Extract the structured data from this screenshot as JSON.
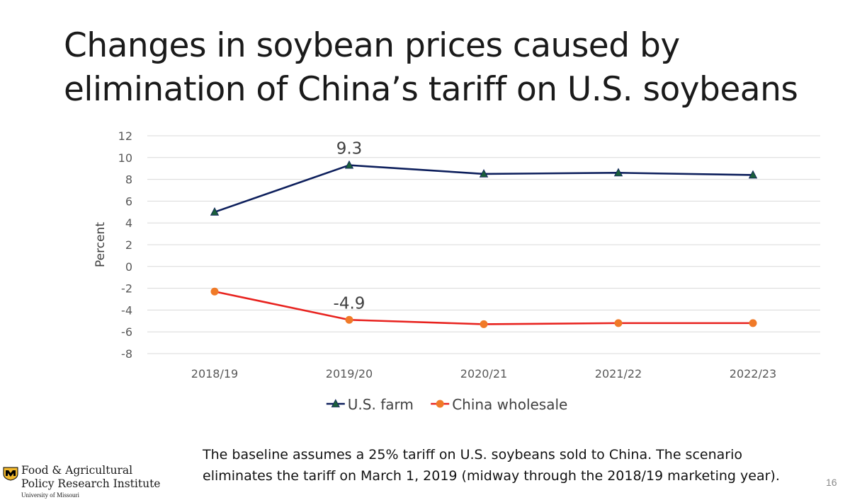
{
  "slide": {
    "title_lines": [
      "Changes in soybean prices caused by",
      "elimination of China’s tariff on U.S. soybeans"
    ],
    "footnote_lines": [
      "The baseline assumes a 25% tariff on U.S. soybeans sold to China. The scenario",
      "eliminates the tariff on March 1, 2019 (midway through the 2018/19 marketing year)."
    ],
    "page_number": "16",
    "logo": {
      "icon": "university-of-missouri-tiger-icon",
      "line1": "Food & Agricultural",
      "line2": "Policy Research Institute",
      "line3": "University of Missouri"
    }
  },
  "chart_data": {
    "type": "line",
    "title": "",
    "xlabel": "",
    "ylabel": "Percent",
    "categories": [
      "2018/19",
      "2019/20",
      "2020/21",
      "2021/22",
      "2022/23"
    ],
    "ylim": [
      -8,
      12
    ],
    "yticks": [
      12,
      10,
      8,
      6,
      4,
      2,
      0,
      -2,
      -4,
      -6,
      -8
    ],
    "grid": true,
    "legend_position": "bottom",
    "series": [
      {
        "name": "U.S. farm",
        "values": [
          5.0,
          9.3,
          8.5,
          8.6,
          8.4
        ],
        "color": "#0d1f5c",
        "marker": "triangle",
        "marker_color": "#1b5e3b"
      },
      {
        "name": "China wholesale",
        "values": [
          -2.3,
          -4.9,
          -5.3,
          -5.2,
          -5.2
        ],
        "color": "#e8231f",
        "marker": "circle",
        "marker_color": "#f07a28"
      }
    ],
    "annotations": [
      {
        "text": "9.3",
        "series": 0,
        "index": 1
      },
      {
        "text": "-4.9",
        "series": 1,
        "index": 1
      }
    ]
  }
}
